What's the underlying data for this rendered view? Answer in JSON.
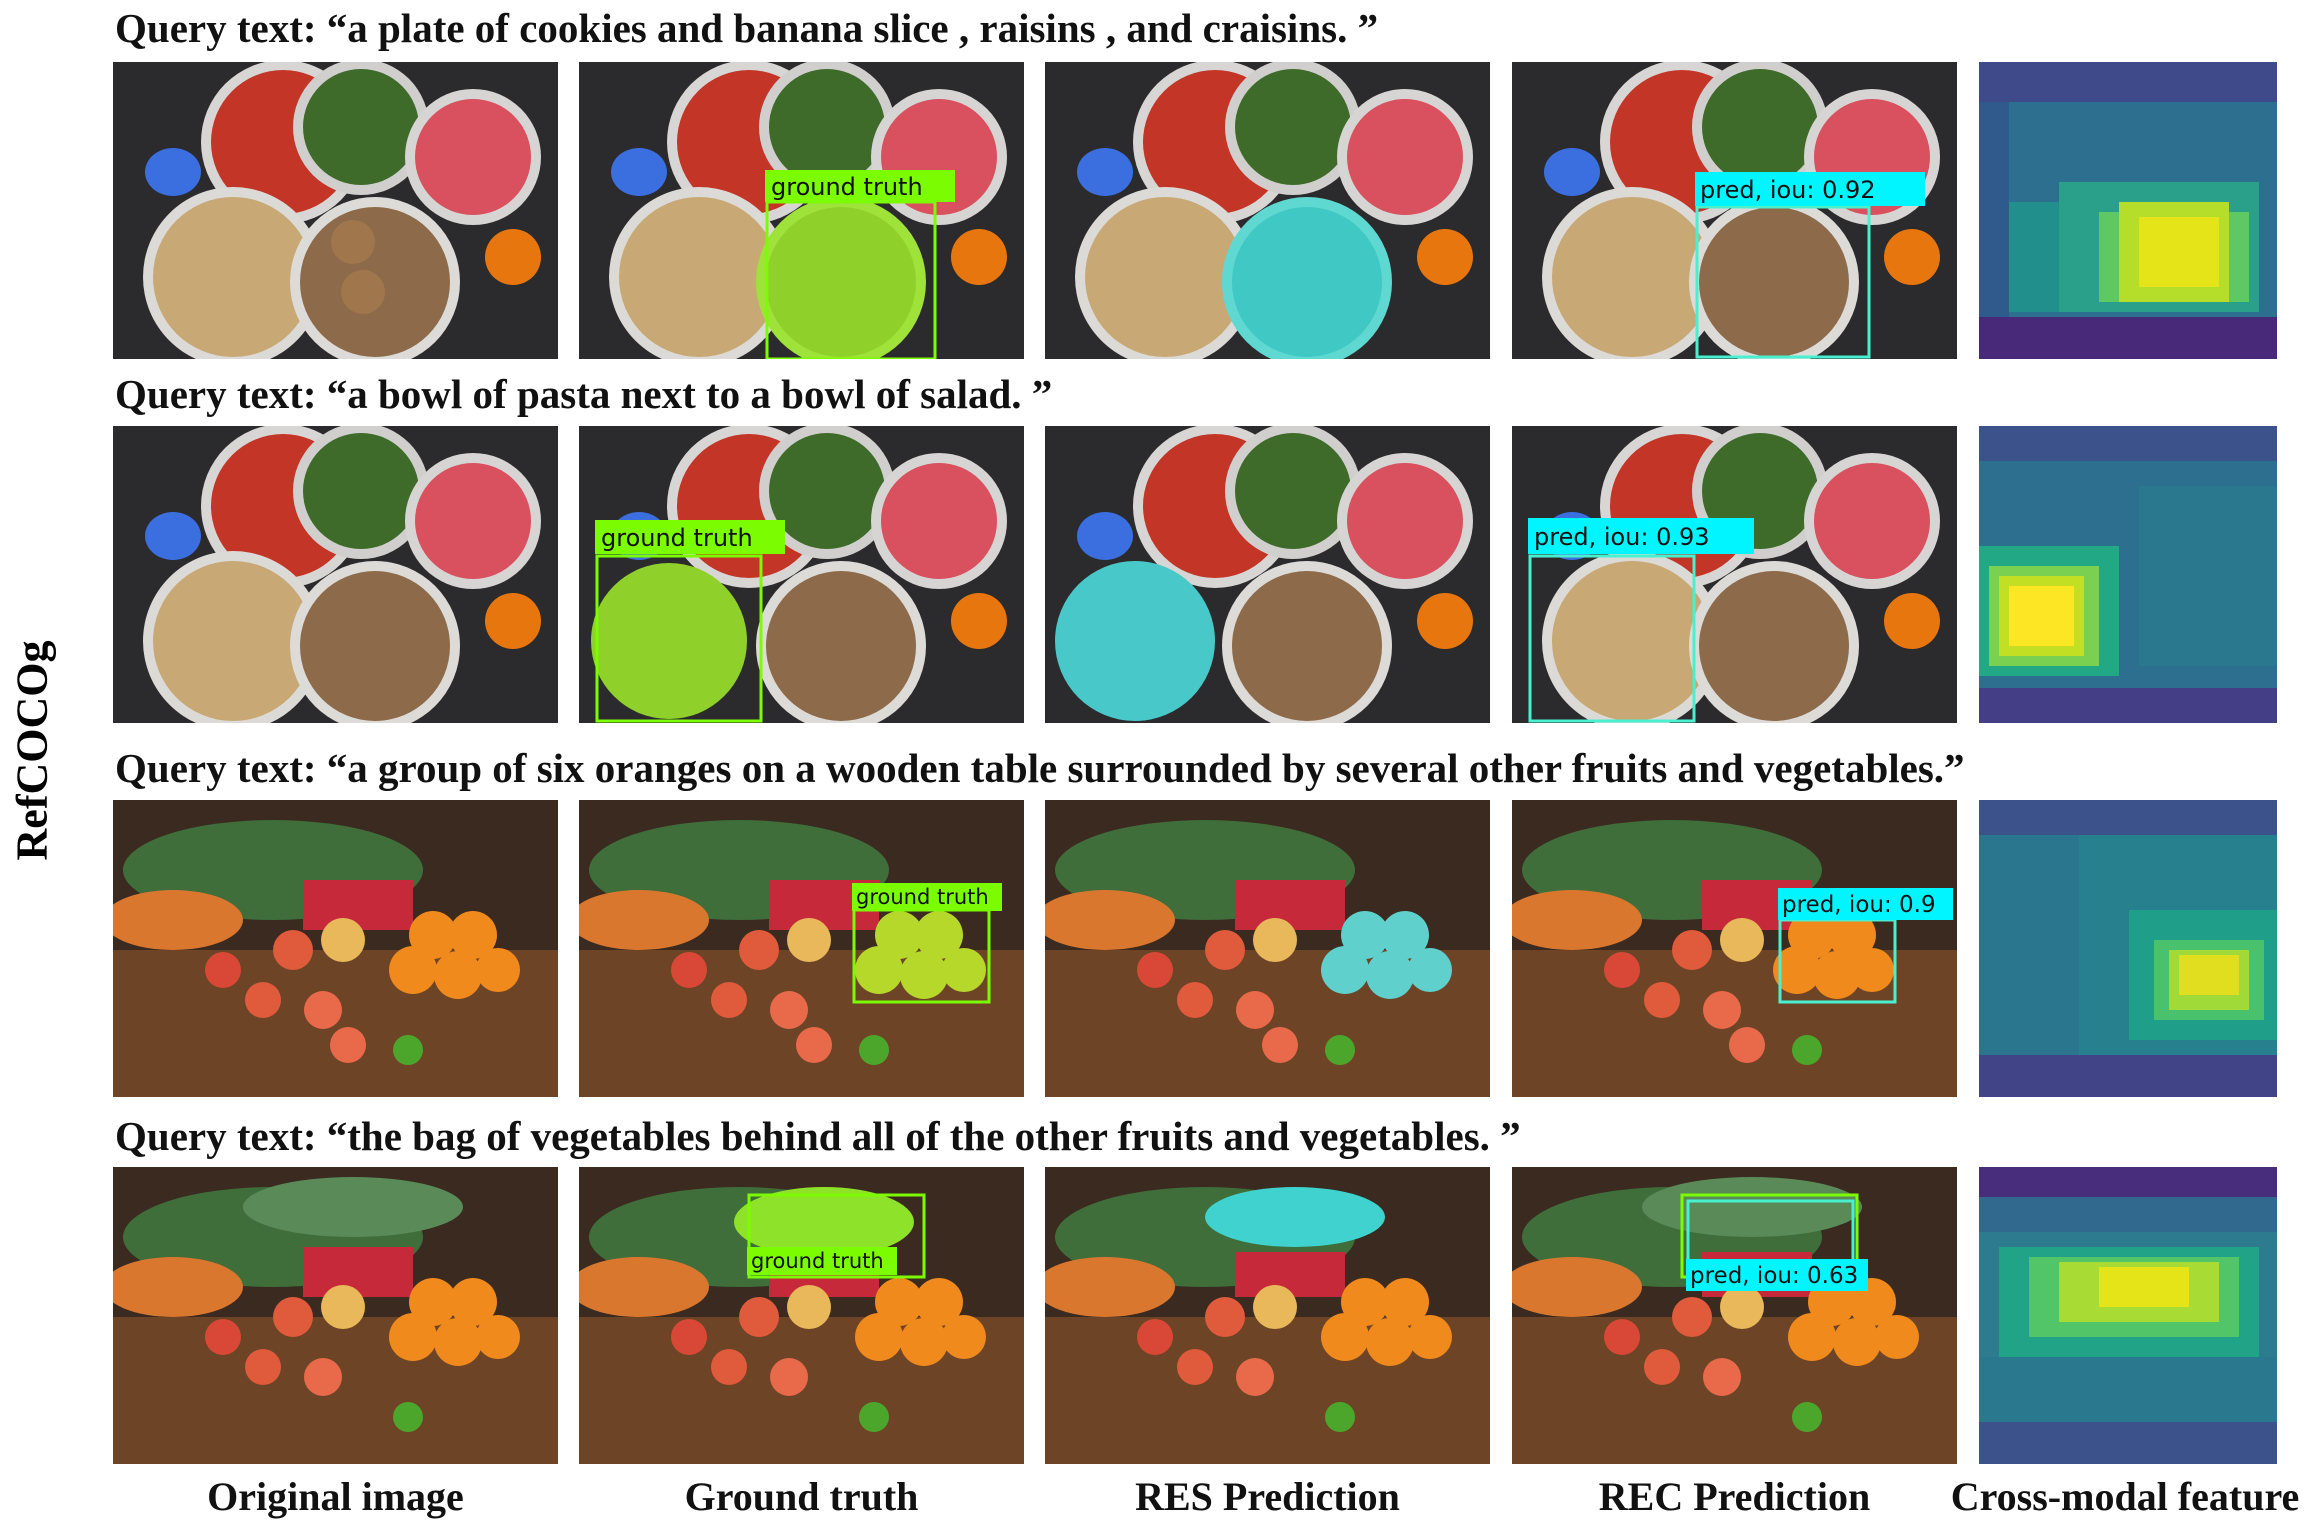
{
  "side_label": "RefCOCOg",
  "queries": [
    "Query text: “a plate of cookies and banana slice , raisins , and craisins. ”",
    "Query text: “a bowl of pasta next to a bowl of salad. ”",
    "Query text: “a group of six oranges on a wooden table surrounded by several other fruits and vegetables.”",
    "Query text: “the bag of vegetables behind all of the other fruits and vegetables. ”"
  ],
  "columns": [
    "Original image",
    "Ground truth",
    "RES Prediction",
    "REC Prediction",
    "Cross-modal feature"
  ],
  "box_labels": {
    "ground_truth": "ground truth",
    "pred": [
      "pred, iou: 0.92",
      "pred, iou: 0.93",
      "pred, iou: 0.9",
      "pred, iou: 0.63"
    ]
  },
  "colors": {
    "gt_box": "#7CFC00",
    "gt_label_bg": "#7CFC00",
    "pred_box": "#48F0D0",
    "pred_label_bg": "#00F5FF",
    "res_mask": "#40E0D0"
  }
}
